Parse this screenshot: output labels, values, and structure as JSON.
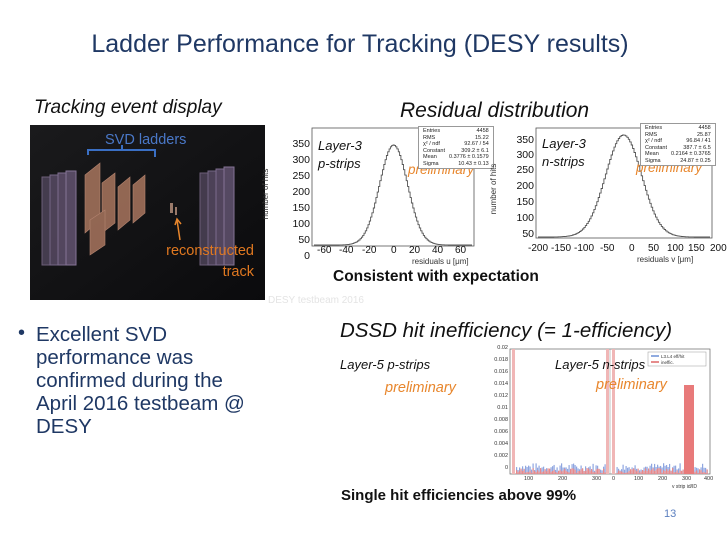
{
  "slide": {
    "title": "Ladder Performance for Tracking (DESY results)",
    "page_number": "13"
  },
  "event_display": {
    "heading": "Tracking event display",
    "svd_label": "SVD ladders",
    "track_label_line1": "reconstructed",
    "track_label_line2": "track",
    "faint_text": "DESY testbeam 2016"
  },
  "residuals": {
    "heading": "Residual distribution",
    "conclusion": "Consistent with expectation",
    "preliminary": "preliminary",
    "plot_u": {
      "layer_label": "Layer-3",
      "strip_label": "p-strips",
      "ylabel": "number of hits",
      "xlabel": "residuals u [μm]",
      "yticks": [
        "350",
        "300",
        "250",
        "200",
        "150",
        "100",
        "50",
        "0"
      ],
      "xticks": [
        "-60",
        "-40",
        "-20",
        "0",
        "20",
        "40",
        "60"
      ],
      "stats": [
        [
          "Entries",
          "4458"
        ],
        [
          "RMS",
          "15.22"
        ],
        [
          "χ² / ndf",
          "92.67 / 54"
        ],
        [
          "Constant",
          "309.2 ± 6.1"
        ],
        [
          "Mean",
          "0.3776 ± 0.1579"
        ],
        [
          "Sigma",
          "10.43 ± 0.13"
        ]
      ]
    },
    "plot_v": {
      "layer_label": "Layer-3",
      "strip_label": "n-strips",
      "ylabel": "number of hits",
      "xlabel": "residuals v [μm]",
      "yticks": [
        "350",
        "300",
        "250",
        "200",
        "150",
        "100",
        "50"
      ],
      "xticks": [
        "-200",
        "-150",
        "-100",
        "-50",
        "0",
        "50",
        "100",
        "150",
        "200"
      ],
      "stats": [
        [
          "Entries",
          "4458"
        ],
        [
          "RMS",
          "25.87"
        ],
        [
          "χ² / ndf",
          "96.84 / 41"
        ],
        [
          "Constant",
          "387.7 ± 6.5"
        ],
        [
          "Mean",
          "0.2164 ± 0.3765"
        ],
        [
          "Sigma",
          "24.87 ± 0.25"
        ]
      ]
    }
  },
  "inefficiency": {
    "heading": "DSSD hit inefficiency (= 1-efficiency)",
    "label_p": "Layer-5 p-strips",
    "label_n": "Layer-5 n-strips",
    "preliminary": "preliminary",
    "conclusion": "Single hit efficiencies above 99%",
    "xlabel": "v strip id/ID",
    "legend": [
      "L3.L4 eff/hit",
      "ineffic."
    ],
    "yticks": [
      "0.02",
      "0.018",
      "0.016",
      "0.014",
      "0.012",
      "0.01",
      "0.008",
      "0.006",
      "0.004",
      "0.002",
      "0"
    ],
    "xticks": [
      "100",
      "200",
      "300",
      "0",
      "100",
      "200",
      "300",
      "400"
    ]
  },
  "bullet": {
    "lines": [
      "Excellent SVD",
      "performance was",
      "confirmed during the",
      "April 2016 testbeam @",
      "DESY"
    ]
  }
}
